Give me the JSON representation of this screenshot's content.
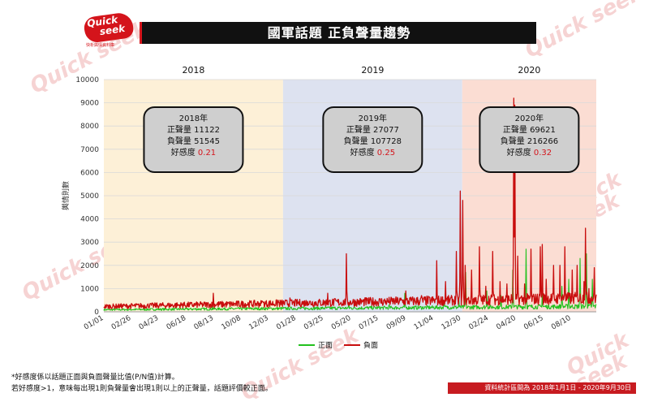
{
  "brand": {
    "logo_text_1": "Quick",
    "logo_text_2": "seek",
    "logo_tagline": "快析輿情資料庫"
  },
  "header": {
    "title": "國軍話題 正負聲量趨勢"
  },
  "watermark": "Quick seek",
  "footnotes": [
    "*好感度係以話題正面與負面聲量比值(P/N值)計算。",
    "若好感度>1，意味每出現1則負聲量會出現1則以上的正聲量，話題評價較正面。"
  ],
  "source": "資料統計區間為 2018年1月1日 - 2020年9月30日",
  "colors": {
    "positive": "#22c11e",
    "negative": "#c80d0d",
    "y2018": "#fdf0d7",
    "y2019": "#dde2f0",
    "y2020": "#fbddd3",
    "accent": "#d4141b"
  },
  "chart_data": {
    "type": "line",
    "ylabel": "輿情則數",
    "ylim": [
      0,
      10000
    ],
    "yticks": [
      0,
      1000,
      2000,
      3000,
      4000,
      5000,
      6000,
      7000,
      8000,
      9000,
      10000
    ],
    "xlim": [
      "2018-01-01",
      "2020-09-30"
    ],
    "xtick_labels": [
      "01/01",
      "02/26",
      "04/23",
      "06/18",
      "08/13",
      "10/08",
      "12/03",
      "01/28",
      "03/25",
      "05/20",
      "07/15",
      "09/09",
      "11/04",
      "12/30",
      "02/24",
      "04/20",
      "06/15",
      "08/10"
    ],
    "periods": [
      {
        "label": "2018",
        "start": "2018-01-01",
        "end": "2018-12-31",
        "summary": {
          "title": "2018年",
          "positive": "正聲量 11122",
          "negative": "負聲量 51545",
          "favor_label": "好感度",
          "favor_value": "0.21"
        }
      },
      {
        "label": "2019",
        "start": "2019-01-01",
        "end": "2019-12-31",
        "summary": {
          "title": "2019年",
          "positive": "正聲量 27077",
          "negative": "負聲量 107728",
          "favor_label": "好感度",
          "favor_value": "0.25"
        }
      },
      {
        "label": "2020",
        "start": "2020-01-01",
        "end": "2020-09-30",
        "summary": {
          "title": "2020年",
          "positive": "正聲量 69621",
          "negative": "負聲量 216266",
          "favor_label": "好感度",
          "favor_value": "0.32"
        }
      }
    ],
    "legend": {
      "placement": "bottom-center"
    },
    "series": [
      {
        "name": "正面",
        "color": "#22c11e",
        "baseline": 90,
        "peaks": [
          [
            "2018-08-10",
            250
          ],
          [
            "2019-05-15",
            350
          ],
          [
            "2019-08-05",
            300
          ],
          [
            "2019-09-06",
            800
          ],
          [
            "2019-11-25",
            400
          ],
          [
            "2019-12-25",
            600
          ],
          [
            "2020-01-08",
            1700
          ],
          [
            "2020-02-20",
            900
          ],
          [
            "2020-03-20",
            700
          ],
          [
            "2020-04-13",
            1800
          ],
          [
            "2020-05-10",
            2700
          ],
          [
            "2020-06-12",
            800
          ],
          [
            "2020-07-22",
            1100
          ],
          [
            "2020-08-05",
            1400
          ],
          [
            "2020-08-28",
            2300
          ],
          [
            "2020-09-10",
            2500
          ],
          [
            "2020-09-22",
            1400
          ]
        ]
      },
      {
        "name": "負面",
        "color": "#c80d0d",
        "baseline": 230,
        "peaks": [
          [
            "2018-02-10",
            300
          ],
          [
            "2018-04-05",
            350
          ],
          [
            "2018-06-12",
            380
          ],
          [
            "2018-08-12",
            800
          ],
          [
            "2018-10-12",
            400
          ],
          [
            "2018-11-20",
            450
          ],
          [
            "2018-12-22",
            500
          ],
          [
            "2019-01-15",
            600
          ],
          [
            "2019-02-20",
            450
          ],
          [
            "2019-04-02",
            800
          ],
          [
            "2019-05-10",
            2500
          ],
          [
            "2019-06-18",
            600
          ],
          [
            "2019-07-25",
            500
          ],
          [
            "2019-09-08",
            900
          ],
          [
            "2019-10-10",
            700
          ],
          [
            "2019-11-10",
            2200
          ],
          [
            "2019-11-28",
            1300
          ],
          [
            "2019-12-20",
            2600
          ],
          [
            "2019-12-28",
            5200
          ],
          [
            "2020-01-02",
            4800
          ],
          [
            "2020-01-07",
            2000
          ],
          [
            "2020-01-20",
            1800
          ],
          [
            "2020-02-05",
            2800
          ],
          [
            "2020-02-18",
            1100
          ],
          [
            "2020-03-03",
            2600
          ],
          [
            "2020-03-18",
            1300
          ],
          [
            "2020-04-01",
            1200
          ],
          [
            "2020-04-15",
            9200
          ],
          [
            "2020-04-17",
            8900
          ],
          [
            "2020-04-23",
            2400
          ],
          [
            "2020-05-07",
            1200
          ],
          [
            "2020-05-20",
            2700
          ],
          [
            "2020-06-08",
            2800
          ],
          [
            "2020-06-12",
            2900
          ],
          [
            "2020-06-20",
            1400
          ],
          [
            "2020-07-05",
            2000
          ],
          [
            "2020-07-18",
            2000
          ],
          [
            "2020-07-28",
            2800
          ],
          [
            "2020-08-12",
            1800
          ],
          [
            "2020-08-22",
            2000
          ],
          [
            "2020-09-05",
            1300
          ],
          [
            "2020-09-08",
            3600
          ],
          [
            "2020-09-15",
            1000
          ],
          [
            "2020-09-26",
            1900
          ]
        ]
      }
    ]
  }
}
